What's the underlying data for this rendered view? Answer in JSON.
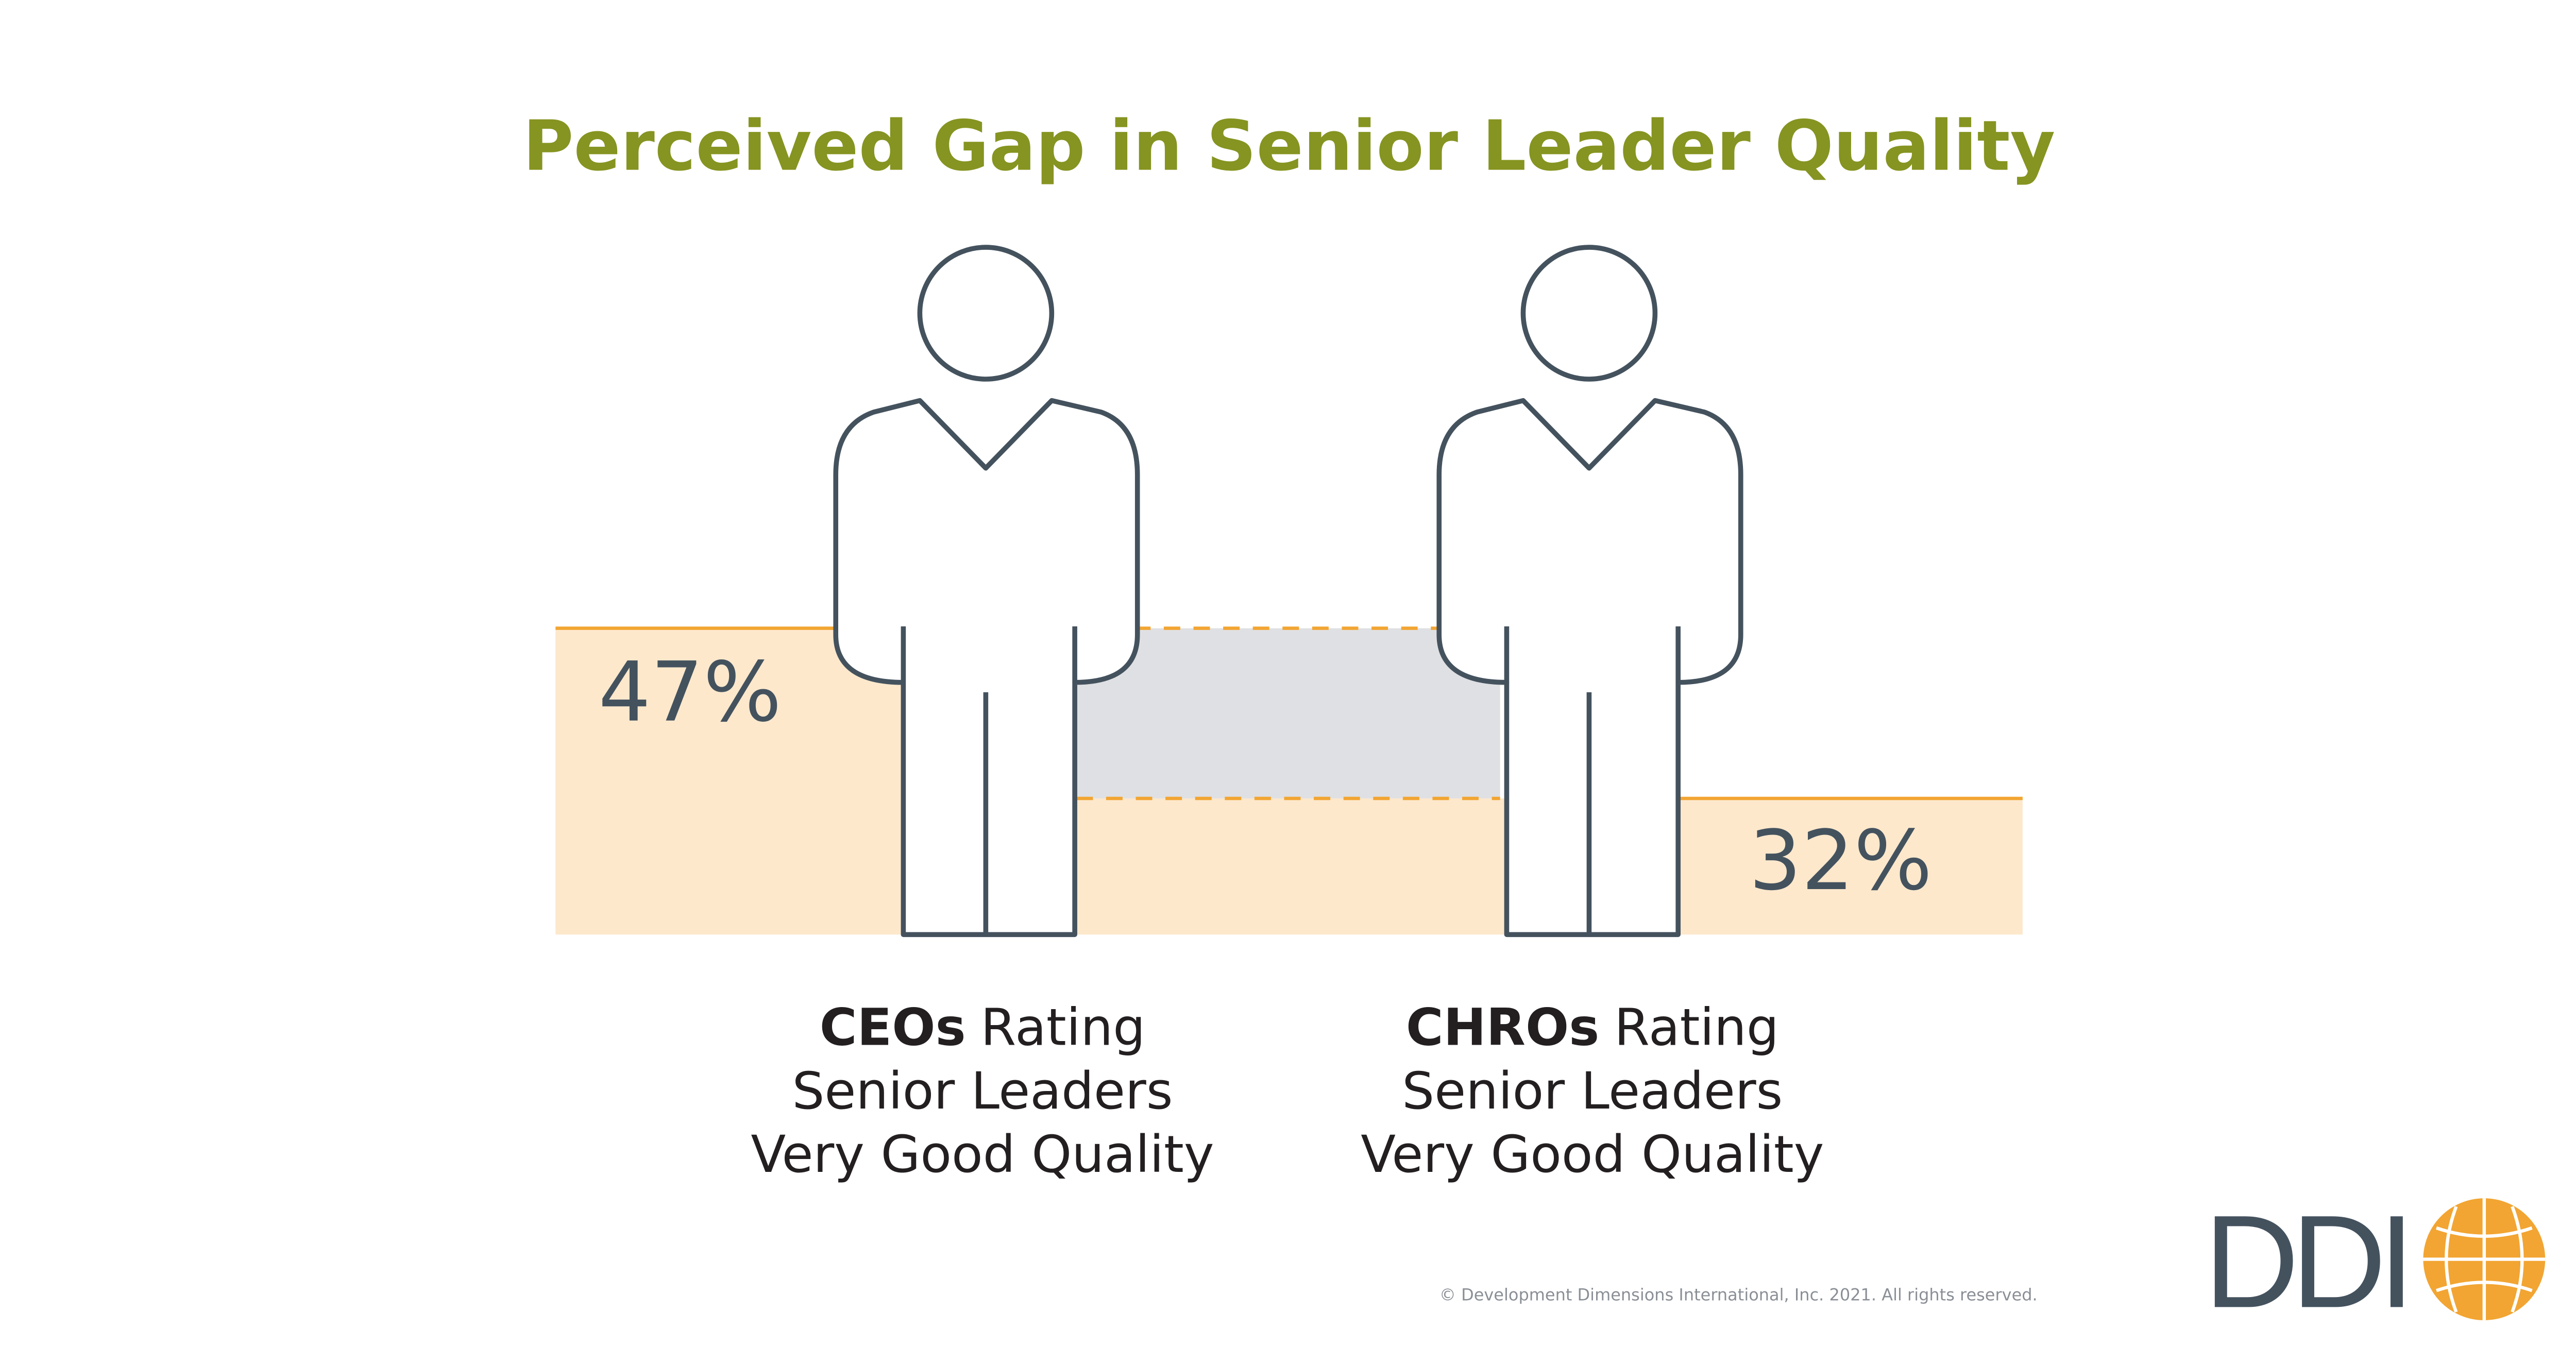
{
  "chart_data": {
    "type": "bar",
    "title": "Perceived Gap in Senior Leader Quality",
    "categories": [
      "CEOs",
      "CHROs"
    ],
    "category_label_lines": [
      [
        "Rating",
        "Senior Leaders",
        "Very Good Quality"
      ],
      [
        "Rating",
        "Senior Leaders",
        "Very Good Quality"
      ]
    ],
    "values": [
      47,
      32
    ],
    "value_labels": [
      "47%",
      "32%"
    ],
    "color": "#fde8cc",
    "line_color": "#f2a532",
    "gap_color": "#dfe0e3",
    "ylim": [
      20,
      80
    ],
    "footer": "© Development Dimensions International, Inc. 2021. All rights reserved.",
    "logo": "DDI"
  }
}
